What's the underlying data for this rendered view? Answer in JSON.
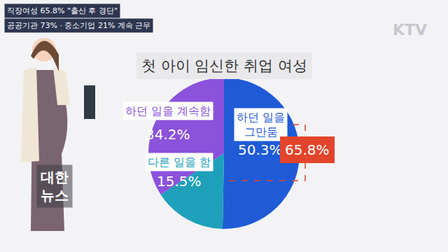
{
  "chart_data": {
    "type": "pie",
    "title": "첫 아이 임신한 취업 여성",
    "categories": [
      "하던 일을\n그만둠",
      "다른 일을 함",
      "하던 일을 계속함"
    ],
    "values": [
      50.3,
      15.5,
      34.2
    ],
    "value_labels": [
      "50.3%",
      "15.5%",
      "34.2%"
    ],
    "colors": [
      "#1f5bd6",
      "#1ea0ba",
      "#8b52db"
    ],
    "data_labels": true,
    "annotations": [
      {
        "text": "65.8%"
      }
    ]
  },
  "header": {
    "headline": "직장여성 65.8% \"출산 후 경단\"",
    "subline": "공공기관 73% · 중소기업 21% 계속 근무"
  },
  "logo": "KTV",
  "program": [
    "대한",
    "뉴스"
  ]
}
